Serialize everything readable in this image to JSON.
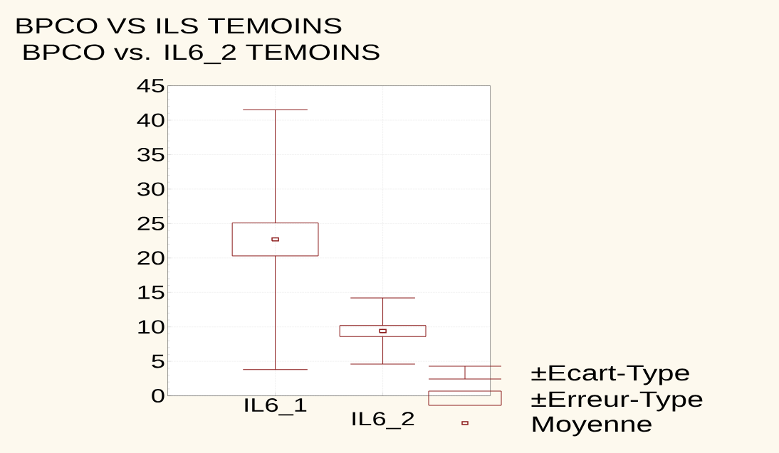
{
  "chart_data": {
    "type": "box",
    "title": "BPCO VS ILS TEMOINS",
    "subtitle": "BPCO vs. IL6_2 TEMOINS",
    "categories": [
      "IL6_1",
      "IL6_2"
    ],
    "boxes": [
      {
        "low": 3.8,
        "q1": 20.3,
        "q3": 25.1,
        "high": 41.5,
        "mean": 22.7
      },
      {
        "low": 4.6,
        "q1": 8.6,
        "q3": 10.2,
        "high": 14.2,
        "mean": 9.4
      }
    ],
    "color": "#8b1a1a",
    "ylim": [
      0,
      45
    ],
    "yticks": [
      0,
      5,
      10,
      15,
      20,
      25,
      30,
      35,
      40,
      45
    ],
    "grid": true,
    "annotations": [
      "±Ecart-Type",
      "±Erreur-Type",
      "Moyenne"
    ]
  }
}
